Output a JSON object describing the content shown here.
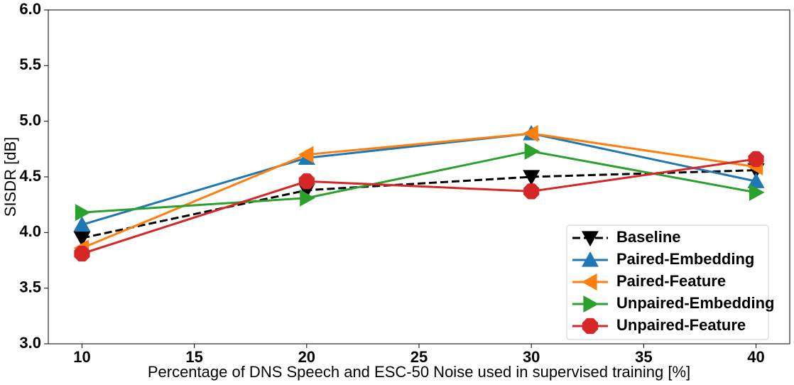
{
  "chart_data": {
    "type": "line",
    "xlabel": "Percentage of DNS Speech and ESC-50 Noise used in supervised training [%]",
    "ylabel": "SISDR [dB]",
    "x": [
      10,
      20,
      30,
      40
    ],
    "xlim": [
      8.5,
      41.5
    ],
    "xticks": [
      10,
      15,
      20,
      25,
      30,
      35,
      40
    ],
    "ylim": [
      3.0,
      6.0
    ],
    "yticks": [
      {
        "value": 3.0,
        "label": "3.0"
      },
      3.5,
      {
        "value": 4.0,
        "label": "4.0"
      },
      4.5,
      {
        "value": 5.0,
        "label": "5.0"
      },
      5.5,
      {
        "value": 6.0,
        "label": "6.0"
      }
    ],
    "legend": "lower right",
    "series": [
      {
        "name": "Baseline",
        "color": "#000000",
        "marker": "v",
        "linestyle": "dashed",
        "values": [
          3.95,
          4.38,
          4.5,
          4.56
        ]
      },
      {
        "name": "Paired-Embedding",
        "color": "#1f77b4",
        "marker": "^",
        "linestyle": "solid",
        "values": [
          4.07,
          4.67,
          4.89,
          4.46
        ]
      },
      {
        "name": "Paired-Feature",
        "color": "#ff7f0e",
        "marker": "<",
        "linestyle": "solid",
        "values": [
          3.86,
          4.7,
          4.89,
          4.59
        ]
      },
      {
        "name": "Unpaired-Embedding",
        "color": "#2ca02c",
        "marker": ">",
        "linestyle": "solid",
        "values": [
          4.18,
          4.31,
          4.73,
          4.36
        ]
      },
      {
        "name": "Unpaired-Feature",
        "color": "#d62728",
        "marker": "o",
        "linestyle": "solid",
        "values": [
          3.81,
          4.46,
          4.37,
          4.66
        ]
      }
    ]
  }
}
